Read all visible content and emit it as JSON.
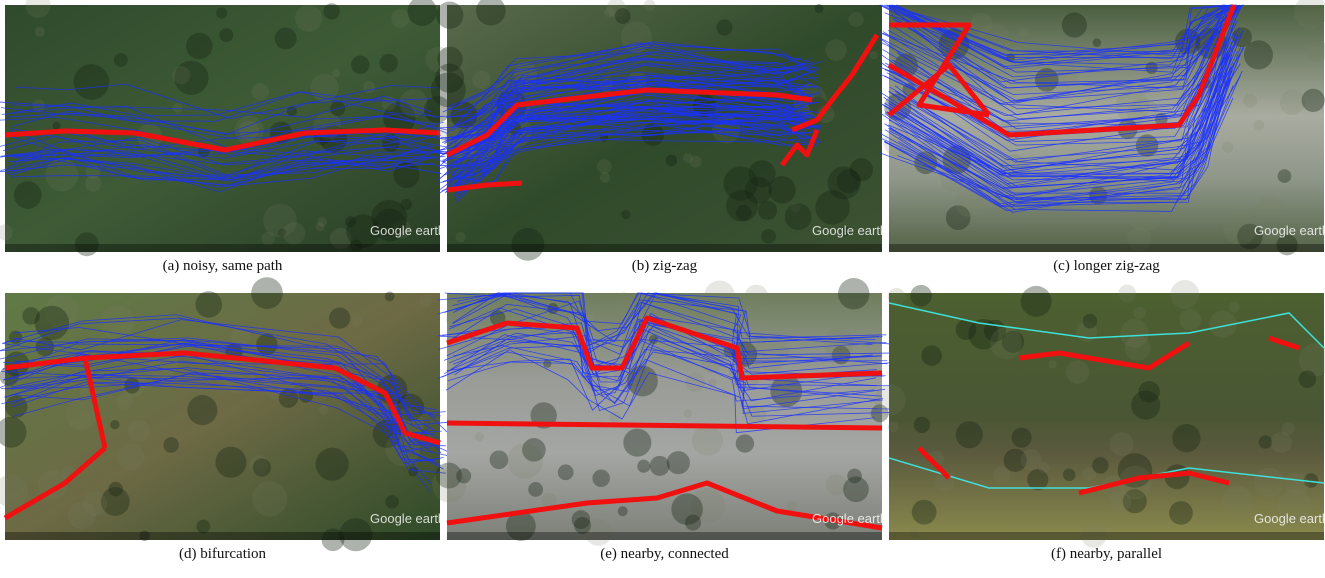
{
  "watermark": "Google earth",
  "panels": [
    {
      "label": "(a)",
      "caption": "noisy, same path"
    },
    {
      "label": "(b)",
      "caption": "zig-zag"
    },
    {
      "label": "(c)",
      "caption": "longer zig-zag"
    },
    {
      "label": "(d)",
      "caption": "bifurcation"
    },
    {
      "label": "(e)",
      "caption": "nearby, connected"
    },
    {
      "label": "(f)",
      "caption": "nearby, parallel"
    }
  ]
}
